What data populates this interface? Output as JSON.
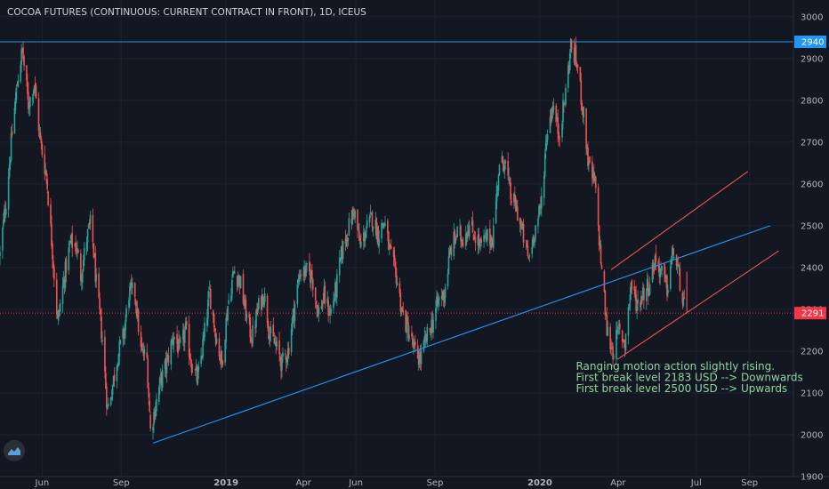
{
  "chart_title": "COCOA FUTURES (CONTINUOUS: CURRENT CONTRACT IN FRONT), 1D, ICEUS",
  "colors": {
    "background": "#131722",
    "grid": "#1e2230",
    "up_candle": "#26a69a",
    "down_candle": "#ef5350",
    "trendline": "#2196f3",
    "channel": "#f0525a",
    "resistance_line": "#2196f3",
    "current_price_line": "#f23645",
    "annotation": "#8fd4a0",
    "axis_text": "#b2b5be"
  },
  "logo_icon": "tradingview-logo-icon",
  "chart_data": {
    "type": "candlestick",
    "title": "COCOA FUTURES (CONTINUOUS: CURRENT CONTRACT IN FRONT), 1D, ICEUS",
    "ylim": [
      1900,
      3040
    ],
    "y_ticks": [
      "3000",
      "2900",
      "2800",
      "2700",
      "2600",
      "2500",
      "2400",
      "2300",
      "2200",
      "2100",
      "2000",
      "1900"
    ],
    "x_ticks": [
      {
        "label": "Jun",
        "date": "2018-06-01",
        "bold": false
      },
      {
        "label": "Sep",
        "date": "2018-09-01",
        "bold": false
      },
      {
        "label": "2019",
        "date": "2019-01-01",
        "bold": true
      },
      {
        "label": "Apr",
        "date": "2019-04-01",
        "bold": false
      },
      {
        "label": "Jun",
        "date": "2019-06-01",
        "bold": false
      },
      {
        "label": "Sep",
        "date": "2019-09-01",
        "bold": false
      },
      {
        "label": "2020",
        "date": "2020-01-01",
        "bold": true
      },
      {
        "label": "Apr",
        "date": "2020-04-01",
        "bold": false
      },
      {
        "label": "Jul",
        "date": "2020-07-01",
        "bold": false
      },
      {
        "label": "Sep",
        "date": "2020-09-01",
        "bold": false
      }
    ],
    "x_range": [
      "2018-04-13",
      "2020-10-22"
    ],
    "price_path": [
      [
        "2018-04-13",
        2430
      ],
      [
        "2018-04-20",
        2560
      ],
      [
        "2018-04-27",
        2720
      ],
      [
        "2018-05-04",
        2860
      ],
      [
        "2018-05-09",
        2920
      ],
      [
        "2018-05-16",
        2790
      ],
      [
        "2018-05-23",
        2840
      ],
      [
        "2018-05-30",
        2700
      ],
      [
        "2018-06-06",
        2620
      ],
      [
        "2018-06-13",
        2440
      ],
      [
        "2018-06-19",
        2270
      ],
      [
        "2018-06-27",
        2380
      ],
      [
        "2018-07-04",
        2460
      ],
      [
        "2018-07-11",
        2450
      ],
      [
        "2018-07-16",
        2380
      ],
      [
        "2018-07-23",
        2470
      ],
      [
        "2018-07-28",
        2510
      ],
      [
        "2018-08-03",
        2360
      ],
      [
        "2018-08-10",
        2230
      ],
      [
        "2018-08-16",
        2060
      ],
      [
        "2018-08-22",
        2120
      ],
      [
        "2018-08-28",
        2190
      ],
      [
        "2018-09-04",
        2240
      ],
      [
        "2018-09-10",
        2340
      ],
      [
        "2018-09-17",
        2340
      ],
      [
        "2018-09-24",
        2200
      ],
      [
        "2018-10-01",
        2180
      ],
      [
        "2018-10-05",
        2010
      ],
      [
        "2018-10-10",
        2060
      ],
      [
        "2018-10-17",
        2130
      ],
      [
        "2018-10-24",
        2170
      ],
      [
        "2018-11-01",
        2240
      ],
      [
        "2018-11-08",
        2200
      ],
      [
        "2018-11-15",
        2250
      ],
      [
        "2018-11-22",
        2170
      ],
      [
        "2018-11-29",
        2130
      ],
      [
        "2018-12-06",
        2230
      ],
      [
        "2018-12-13",
        2340
      ],
      [
        "2018-12-20",
        2240
      ],
      [
        "2018-12-27",
        2170
      ],
      [
        "2019-01-03",
        2310
      ],
      [
        "2019-01-10",
        2390
      ],
      [
        "2019-01-17",
        2370
      ],
      [
        "2019-01-24",
        2290
      ],
      [
        "2019-01-31",
        2230
      ],
      [
        "2019-02-07",
        2300
      ],
      [
        "2019-02-14",
        2340
      ],
      [
        "2019-02-21",
        2240
      ],
      [
        "2019-02-28",
        2210
      ],
      [
        "2019-03-07",
        2170
      ],
      [
        "2019-03-14",
        2200
      ],
      [
        "2019-03-21",
        2300
      ],
      [
        "2019-03-28",
        2390
      ],
      [
        "2019-04-04",
        2390
      ],
      [
        "2019-04-11",
        2380
      ],
      [
        "2019-04-18",
        2290
      ],
      [
        "2019-04-25",
        2330
      ],
      [
        "2019-05-02",
        2290
      ],
      [
        "2019-05-09",
        2350
      ],
      [
        "2019-05-16",
        2440
      ],
      [
        "2019-05-23",
        2490
      ],
      [
        "2019-05-30",
        2540
      ],
      [
        "2019-06-06",
        2450
      ],
      [
        "2019-06-13",
        2490
      ],
      [
        "2019-06-20",
        2520
      ],
      [
        "2019-06-27",
        2480
      ],
      [
        "2019-07-04",
        2510
      ],
      [
        "2019-07-11",
        2430
      ],
      [
        "2019-07-18",
        2380
      ],
      [
        "2019-07-25",
        2290
      ],
      [
        "2019-08-01",
        2250
      ],
      [
        "2019-08-08",
        2200
      ],
      [
        "2019-08-15",
        2180
      ],
      [
        "2019-08-22",
        2230
      ],
      [
        "2019-08-29",
        2270
      ],
      [
        "2019-09-05",
        2320
      ],
      [
        "2019-09-12",
        2340
      ],
      [
        "2019-09-19",
        2440
      ],
      [
        "2019-09-26",
        2480
      ],
      [
        "2019-10-03",
        2470
      ],
      [
        "2019-10-10",
        2500
      ],
      [
        "2019-10-17",
        2480
      ],
      [
        "2019-10-24",
        2450
      ],
      [
        "2019-10-31",
        2470
      ],
      [
        "2019-11-07",
        2470
      ],
      [
        "2019-11-14",
        2630
      ],
      [
        "2019-11-21",
        2660
      ],
      [
        "2019-11-28",
        2570
      ],
      [
        "2019-12-05",
        2540
      ],
      [
        "2019-12-12",
        2480
      ],
      [
        "2019-12-19",
        2420
      ],
      [
        "2019-12-26",
        2490
      ],
      [
        "2020-01-02",
        2540
      ],
      [
        "2020-01-09",
        2720
      ],
      [
        "2020-01-16",
        2790
      ],
      [
        "2020-01-23",
        2720
      ],
      [
        "2020-01-30",
        2800
      ],
      [
        "2020-02-06",
        2930
      ],
      [
        "2020-02-13",
        2890
      ],
      [
        "2020-02-20",
        2780
      ],
      [
        "2020-02-27",
        2640
      ],
      [
        "2020-03-05",
        2600
      ],
      [
        "2020-03-12",
        2420
      ],
      [
        "2020-03-19",
        2250
      ],
      [
        "2020-03-26",
        2200
      ],
      [
        "2020-04-02",
        2250
      ],
      [
        "2020-04-09",
        2220
      ],
      [
        "2020-04-16",
        2360
      ],
      [
        "2020-04-23",
        2310
      ],
      [
        "2020-04-30",
        2340
      ],
      [
        "2020-05-07",
        2360
      ],
      [
        "2020-05-14",
        2420
      ],
      [
        "2020-05-21",
        2390
      ],
      [
        "2020-05-28",
        2350
      ],
      [
        "2020-06-04",
        2440
      ],
      [
        "2020-06-11",
        2380
      ],
      [
        "2020-06-18",
        2290
      ]
    ],
    "horizontal_lines": [
      {
        "name": "resistance",
        "value": 2940,
        "label": "2940",
        "color": "#2196f3"
      },
      {
        "name": "current-price",
        "value": 2291,
        "label": "2291",
        "color": "#f23645",
        "dotted": true
      }
    ],
    "trendlines": [
      {
        "name": "long-term-support",
        "color": "#2196f3",
        "points": [
          [
            "2018-10-08",
            1980
          ],
          [
            "2020-09-25",
            2500
          ]
        ]
      },
      {
        "name": "channel-upper",
        "color": "#f0525a",
        "points": [
          [
            "2020-03-24",
            2395
          ],
          [
            "2020-08-30",
            2630
          ]
        ]
      },
      {
        "name": "channel-lower",
        "color": "#f0525a",
        "points": [
          [
            "2020-03-31",
            2180
          ],
          [
            "2020-10-05",
            2440
          ]
        ]
      },
      {
        "name": "channel-right-edge",
        "color": "#f0525a",
        "points": [
          [
            "2020-06-20",
            2390
          ],
          [
            "2020-06-20",
            2290
          ]
        ]
      }
    ]
  },
  "annotation": {
    "lines": [
      "Ranging motion action slightly rising.",
      "First break level 2183 USD --> Downwards",
      "First break level 2500 USD --> Upwards"
    ],
    "anchor_date": "2020-02-12",
    "anchor_price": 2155
  }
}
